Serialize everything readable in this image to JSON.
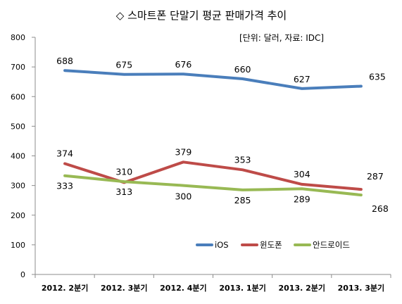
{
  "chart_data": {
    "type": "line",
    "title": "◇ 스마트폰 단말기 평균 판매가격 추이",
    "note": "[단위: 달러, 자료: IDC]",
    "categories": [
      "2012. 2분기",
      "2012. 3분기",
      "2012. 4분기",
      "2013. 1분기",
      "2013. 2분기",
      "2013. 3분기"
    ],
    "ylim": [
      0,
      800
    ],
    "yticks": [
      0,
      100,
      200,
      300,
      400,
      500,
      600,
      700,
      800
    ],
    "grid": false,
    "legend_position": "bottom-right",
    "series": [
      {
        "name": "iOS",
        "values": [
          688,
          675,
          676,
          660,
          627,
          635
        ],
        "color": "#4a7ebb"
      },
      {
        "name": "윈도폰",
        "values": [
          374,
          310,
          379,
          353,
          304,
          287
        ],
        "color": "#be4b48"
      },
      {
        "name": "안드로이드",
        "values": [
          333,
          313,
          300,
          285,
          289,
          268
        ],
        "color": "#98b954"
      }
    ]
  }
}
